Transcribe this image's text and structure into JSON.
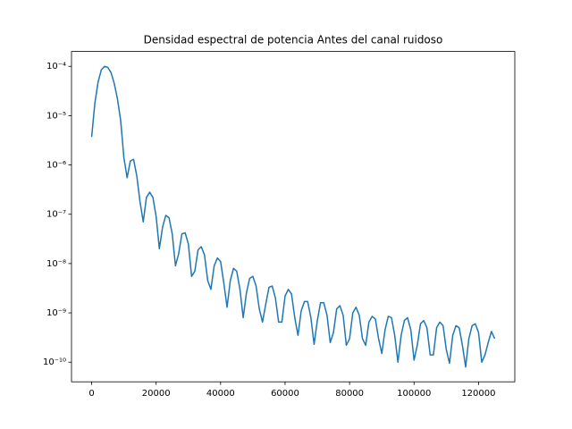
{
  "chart_data": {
    "type": "line",
    "title": "Densidad espectral de potencia Antes del canal ruidoso",
    "log_y": true,
    "x": [
      0,
      1000,
      2000,
      3000,
      4000,
      5000,
      6000,
      7000,
      8000,
      9000,
      10000,
      11000,
      12000,
      13000,
      14000,
      15000,
      16000,
      17000,
      18000,
      19000,
      20000,
      21000,
      22000,
      23000,
      24000,
      25000,
      26000,
      27000,
      28000,
      29000,
      30000,
      31000,
      32000,
      33000,
      34000,
      35000,
      36000,
      37000,
      38000,
      39000,
      40000,
      41000,
      42000,
      43000,
      44000,
      45000,
      46000,
      47000,
      48000,
      49000,
      50000,
      51000,
      52000,
      53000,
      54000,
      55000,
      56000,
      57000,
      58000,
      59000,
      60000,
      61000,
      62000,
      63000,
      64000,
      65000,
      66000,
      67000,
      68000,
      69000,
      70000,
      71000,
      72000,
      73000,
      74000,
      75000,
      76000,
      77000,
      78000,
      79000,
      80000,
      81000,
      82000,
      83000,
      84000,
      85000,
      86000,
      87000,
      88000,
      89000,
      90000,
      91000,
      92000,
      93000,
      94000,
      95000,
      96000,
      97000,
      98000,
      99000,
      100000,
      101000,
      102000,
      103000,
      104000,
      105000,
      106000,
      107000,
      108000,
      109000,
      110000,
      111000,
      112000,
      113000,
      114000,
      115000,
      116000,
      117000,
      118000,
      119000,
      120000,
      121000,
      122000,
      123000,
      124000,
      125000
    ],
    "series": [
      {
        "color": "#1f77b4",
        "values": [
          3.7e-06,
          1.8e-05,
          4.8e-05,
          8.5e-05,
          0.0001,
          9.5e-05,
          7.5e-05,
          4.5e-05,
          2.2e-05,
          8e-06,
          1.4e-06,
          5.5e-07,
          1.2e-06,
          1.3e-06,
          6e-07,
          1.8e-07,
          7e-08,
          2.2e-07,
          2.8e-07,
          2.2e-07,
          9e-08,
          2e-08,
          5.5e-08,
          9.5e-08,
          8.5e-08,
          4e-08,
          9e-09,
          1.6e-08,
          4e-08,
          4.2e-08,
          2.5e-08,
          5.5e-09,
          7e-09,
          1.9e-08,
          2.2e-08,
          1.5e-08,
          4.5e-09,
          3e-09,
          9e-09,
          1.3e-08,
          1.1e-08,
          4e-09,
          1.3e-09,
          4.5e-09,
          8e-09,
          7e-09,
          3e-09,
          8e-10,
          2.5e-09,
          5e-09,
          5.5e-09,
          3.5e-09,
          1.2e-09,
          6.5e-10,
          1.5e-09,
          3.3e-09,
          3.5e-09,
          2e-09,
          6.5e-10,
          6.5e-10,
          2.2e-09,
          3e-09,
          2.4e-09,
          8e-10,
          3.5e-10,
          1.1e-09,
          1.7e-09,
          1.7e-09,
          8e-10,
          2.3e-10,
          7e-10,
          1.6e-09,
          1.6e-09,
          9e-10,
          2.5e-10,
          4e-10,
          1.2e-09,
          1.4e-09,
          9e-10,
          2.2e-10,
          3e-10,
          1e-09,
          1.3e-09,
          9e-10,
          3e-10,
          2.2e-10,
          6.5e-10,
          8.5e-10,
          7.5e-10,
          3e-10,
          1.5e-10,
          4.5e-10,
          8.5e-10,
          8e-10,
          3.5e-10,
          1e-10,
          3.5e-10,
          7e-10,
          8e-10,
          4.5e-10,
          1.1e-10,
          2.2e-10,
          6e-10,
          7e-10,
          5e-10,
          1.4e-10,
          1.4e-10,
          5e-10,
          6.5e-10,
          5.5e-10,
          1.8e-10,
          9.5e-11,
          3.5e-10,
          5.5e-10,
          5e-10,
          2.2e-10,
          8e-11,
          3e-10,
          5.5e-10,
          6e-10,
          4e-10,
          1e-10,
          1.4e-10,
          2.5e-10,
          4.2e-10,
          3e-10
        ]
      }
    ],
    "xlim": [
      -6250,
      131250
    ],
    "xticks": [
      0,
      20000,
      40000,
      60000,
      80000,
      100000,
      120000
    ],
    "ylim": [
      4e-11,
      0.0002
    ],
    "yticks": [
      {
        "value": 1e-10,
        "label": "10⁻¹⁰"
      },
      {
        "value": 1e-09,
        "label": "10⁻⁹"
      },
      {
        "value": 1e-08,
        "label": "10⁻⁸"
      },
      {
        "value": 1e-07,
        "label": "10⁻⁷"
      },
      {
        "value": 1e-06,
        "label": "10⁻⁶"
      },
      {
        "value": 1e-05,
        "label": "10⁻⁵"
      },
      {
        "value": 0.0001,
        "label": "10⁻⁴"
      }
    ]
  }
}
